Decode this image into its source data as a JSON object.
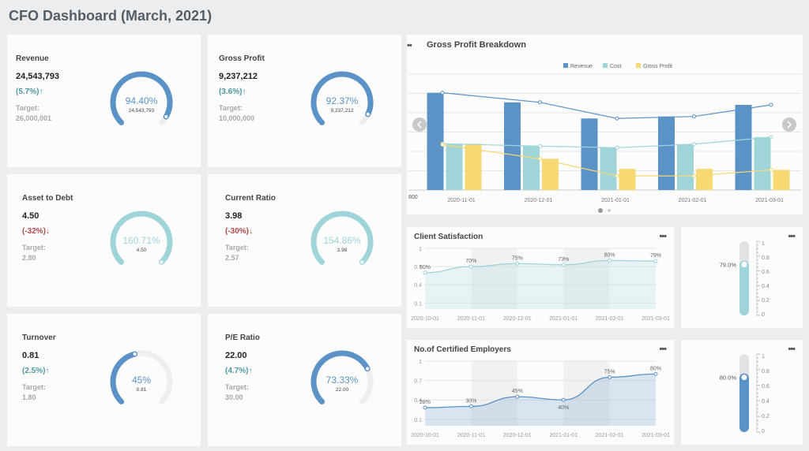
{
  "page": {
    "title": "CFO Dashboard (March, 2021)"
  },
  "colors": {
    "teal": "#4e9aa0",
    "red": "#b24a4a",
    "gauge_blue": "#5b93c7",
    "gauge_teal": "#9fd4d9",
    "gauge_track": "#eeeeee",
    "revenue": "#5b93c7",
    "cost": "#9fd4d9",
    "gross_profit": "#f7d974"
  },
  "kpis": [
    {
      "label": "Revenue",
      "value": "24,543,793",
      "change": "(5.7%)↑",
      "trend": "up",
      "target_label": "Target:",
      "target": "26,000,001",
      "gauge_pct": "94.40%",
      "gauge_sub": "24,543,793",
      "fraction": 0.944,
      "color": "blue"
    },
    {
      "label": "Gross Profit",
      "value": "9,237,212",
      "change": "(3.6%)↑",
      "trend": "up",
      "target_label": "Target:",
      "target": "10,000,000",
      "gauge_pct": "92.37%",
      "gauge_sub": "9,237,212",
      "fraction": 0.9237,
      "color": "blue"
    },
    {
      "label": "Asset to Debt",
      "value": "4.50",
      "change": "(-32%)↓",
      "trend": "down",
      "target_label": "Target:",
      "target": "2.80",
      "gauge_pct": "160.71%",
      "gauge_sub": "4.50",
      "fraction": 1.0,
      "color": "teal"
    },
    {
      "label": "Current Ratio",
      "value": "3.98",
      "change": "(-30%)↓",
      "trend": "down",
      "target_label": "Target:",
      "target": "2.57",
      "gauge_pct": "154.86%",
      "gauge_sub": "3.98",
      "fraction": 1.0,
      "color": "teal"
    },
    {
      "label": "Turnover",
      "value": "0.81",
      "change": "(2.5%)↑",
      "trend": "up",
      "target_label": "Target:",
      "target": "1.80",
      "gauge_pct": "45%",
      "gauge_sub": "0.81",
      "fraction": 0.45,
      "color": "blue"
    },
    {
      "label": "P/E Ratio",
      "value": "22.00",
      "change": "(4.7%)↑",
      "trend": "up",
      "target_label": "Target:",
      "target": "30.00",
      "gauge_pct": "73.33%",
      "gauge_sub": "22.00",
      "fraction": 0.7333,
      "color": "blue"
    }
  ],
  "gross_profit": {
    "title": "Gross Profit Breakdown",
    "menu": "••",
    "y_tick_label": "800",
    "page_dots": 2,
    "active_page": 0
  },
  "client_satisfaction": {
    "title": "Client Satisfaction",
    "menu": "•••"
  },
  "certified_employers": {
    "title": "No.of Certified Employers",
    "menu": "•••"
  },
  "thermo_satisfaction": {
    "menu": "•••",
    "value_label": "79.0%",
    "fraction": 0.79,
    "ticks": [
      "1",
      "0.8",
      "0.6",
      "0.4",
      "0.2",
      "0"
    ],
    "color": "#9fd4d9"
  },
  "thermo_employers": {
    "menu": "•••",
    "value_label": "80.0%",
    "fraction": 0.8,
    "ticks": [
      "1",
      "0.8",
      "0.6",
      "0.4",
      "0.2",
      "0"
    ],
    "color": "#5b93c7"
  },
  "chart_data": [
    {
      "type": "bar",
      "title": "Gross Profit Breakdown",
      "categories": [
        "2020-11-01",
        "2020-12-01",
        "2021-01-01",
        "2021-02-01",
        "2021-03-01"
      ],
      "series": [
        {
          "name": "Revenue",
          "values": [
            27300,
            25400,
            22200,
            22600,
            24900
          ],
          "color": "#5b93c7"
        },
        {
          "name": "Cost",
          "values": [
            17100,
            16800,
            16400,
            17100,
            18500
          ],
          "color": "#9fd4d9"
        },
        {
          "name": "Gross Profit",
          "values": [
            17200,
            14200,
            12200,
            12200,
            12000
          ],
          "color": "#f7d974"
        }
      ],
      "line_series": [
        {
          "name": "Revenue",
          "values": [
            27300,
            25400,
            22200,
            22600,
            24900
          ],
          "color": "#5b93c7"
        },
        {
          "name": "Cost",
          "values": [
            17200,
            16700,
            16400,
            17100,
            18500
          ],
          "color": "#9fd4d9"
        },
        {
          "name": "Gross Profit",
          "values": [
            17000,
            14200,
            10800,
            10800,
            12000
          ],
          "color": "#f7d974"
        }
      ],
      "ylim": [
        8000,
        31000
      ],
      "legend": "top-center",
      "grid": true
    },
    {
      "type": "area",
      "title": "Client Satisfaction",
      "x": [
        "2020-10-01",
        "2020-11-01",
        "2020-12-01",
        "2021-01-01",
        "2021-02-01",
        "2021-03-01"
      ],
      "series": [
        {
          "values": [
            0.6,
            0.7,
            0.75,
            0.73,
            0.8,
            0.79
          ],
          "labels": [
            "60%",
            "70%",
            "75%",
            "73%",
            "80%",
            "79%"
          ]
        }
      ],
      "y_ticks": [
        "1",
        "0.7",
        "0.4",
        "0.1"
      ],
      "ylim": [
        0,
        1
      ],
      "color": "#9fd4d9"
    },
    {
      "type": "area",
      "title": "No.of Certified Employers",
      "x": [
        "2020-10-01",
        "2020-11-01",
        "2020-12-01",
        "2021-01-01",
        "2021-02-01",
        "2021-03-01"
      ],
      "series": [
        {
          "values": [
            0.28,
            0.3,
            0.45,
            0.4,
            0.75,
            0.8
          ],
          "labels": [
            "28%",
            "30%",
            "45%",
            "40%",
            "75%",
            "80%"
          ]
        }
      ],
      "y_ticks": [
        "1",
        "0.7",
        "0.4",
        "0.1"
      ],
      "ylim": [
        0,
        1
      ],
      "color": "#5b93c7"
    }
  ]
}
